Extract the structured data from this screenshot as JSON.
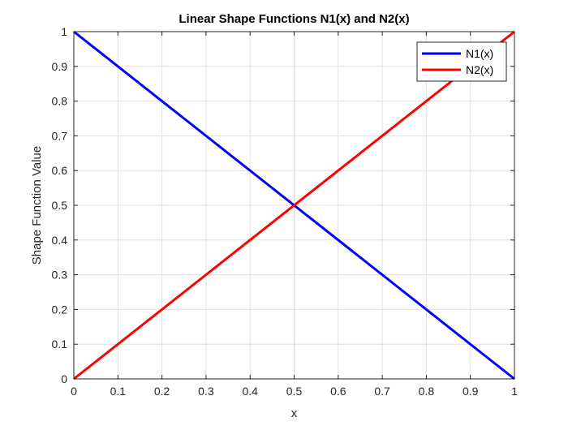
{
  "chart_data": {
    "type": "line",
    "title": "Linear Shape Functions N1(x) and N2(x)",
    "xlabel": "x",
    "ylabel": "Shape Function Value",
    "xlim": [
      0,
      1
    ],
    "ylim": [
      0,
      1
    ],
    "xticks": [
      0,
      0.1,
      0.2,
      0.3,
      0.4,
      0.5,
      0.6,
      0.7,
      0.8,
      0.9,
      1
    ],
    "xtick_labels": [
      "0",
      "0.1",
      "0.2",
      "0.3",
      "0.4",
      "0.5",
      "0.6",
      "0.7",
      "0.8",
      "0.9",
      "1"
    ],
    "yticks": [
      0,
      0.1,
      0.2,
      0.3,
      0.4,
      0.5,
      0.6,
      0.7,
      0.8,
      0.9,
      1
    ],
    "ytick_labels": [
      "0",
      "0.1",
      "0.2",
      "0.3",
      "0.4",
      "0.5",
      "0.6",
      "0.7",
      "0.8",
      "0.9",
      "1"
    ],
    "grid": true,
    "legend_position": "top-right",
    "series": [
      {
        "name": "N1(x)",
        "color": "#0000ff",
        "x": [
          0,
          1
        ],
        "y": [
          1,
          0
        ]
      },
      {
        "name": "N2(x)",
        "color": "#ff0000",
        "x": [
          0,
          1
        ],
        "y": [
          0,
          1
        ]
      }
    ]
  }
}
